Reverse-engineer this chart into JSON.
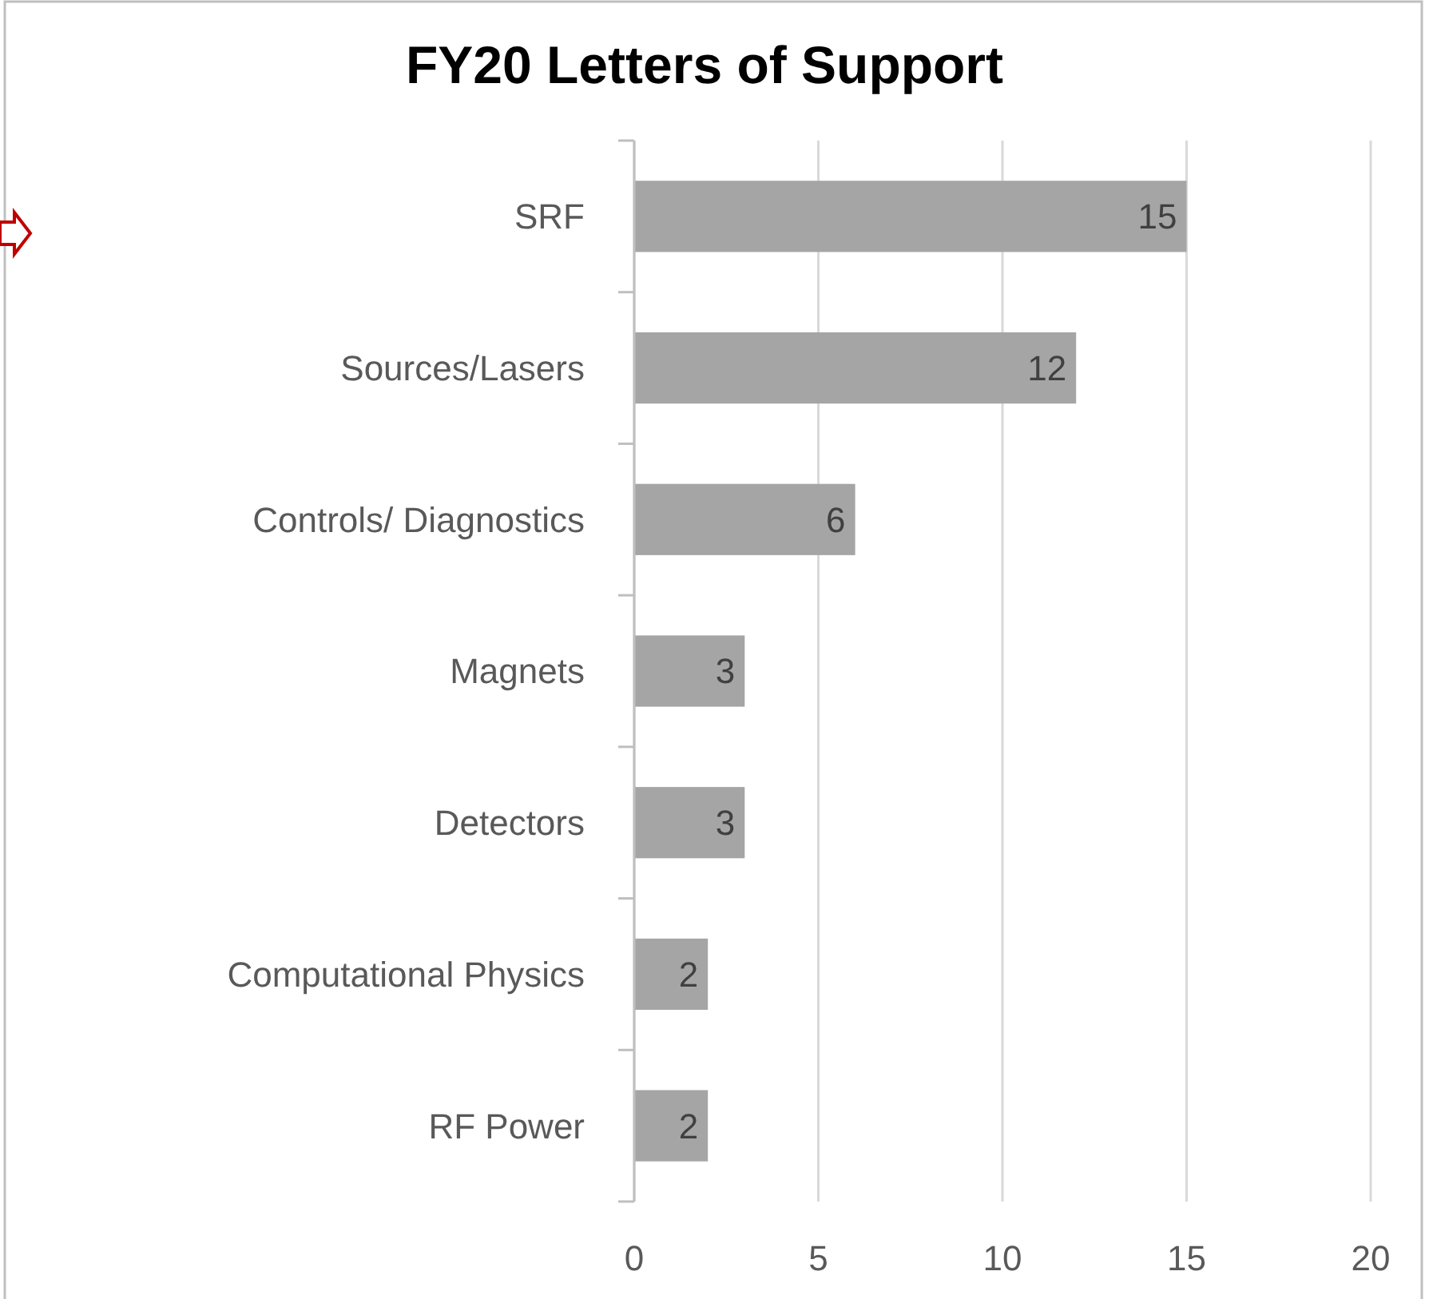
{
  "chart_data": {
    "type": "bar",
    "orientation": "horizontal",
    "title": "FY20 Letters of Support",
    "categories": [
      "SRF",
      "Sources/Lasers",
      "Controls/ Diagnostics",
      "Magnets",
      "Detectors",
      "Computational Physics",
      "RF Power"
    ],
    "values": [
      15,
      12,
      6,
      3,
      3,
      2,
      2
    ],
    "color": "#a5a5a5",
    "data_labels": true,
    "xlim": [
      0,
      20
    ],
    "xticks": [
      0,
      5,
      10,
      15,
      20
    ],
    "grid": "x"
  }
}
